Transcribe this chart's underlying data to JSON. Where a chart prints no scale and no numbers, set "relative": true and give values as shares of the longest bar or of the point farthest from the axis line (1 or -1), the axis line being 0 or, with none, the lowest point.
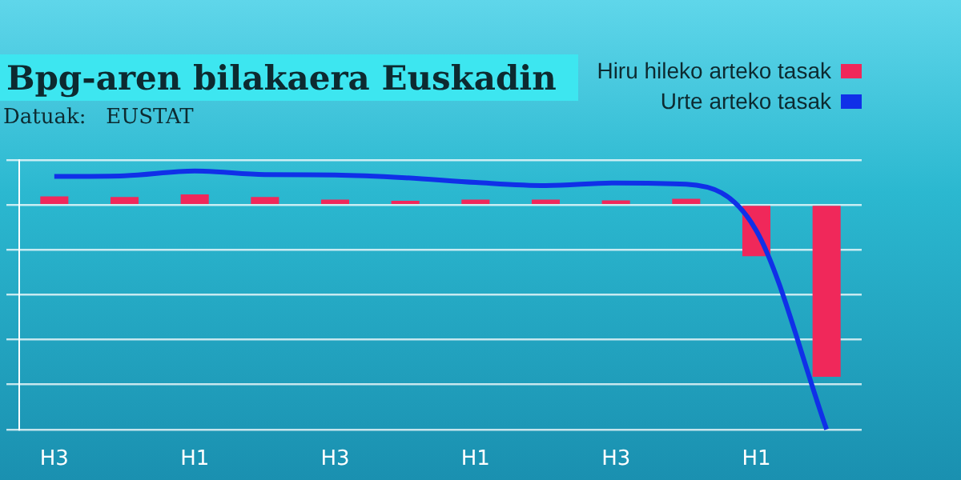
{
  "chart_data": {
    "type": "bar",
    "title": "Bpg-aren bilakaera Euskadin",
    "annotations": [
      "Datuak:   EUSTAT"
    ],
    "categories": [
      "H3",
      null,
      "H1",
      null,
      "H3",
      null,
      "H1",
      null,
      "H3",
      null,
      "H1",
      null
    ],
    "relative": true,
    "grid": "y",
    "legend": "top right",
    "series": [
      {
        "name": "Hiru hileko arteko tasak",
        "color": "#f0285a",
        "values": [
          0.038,
          0.035,
          0.047,
          0.035,
          0.024,
          0.018,
          0.024,
          0.024,
          0.02,
          0.027,
          -0.228,
          -0.766
        ]
      },
      {
        "name": "Urte arteko tasak",
        "type": "line",
        "color": "#1030e8",
        "values": [
          0.127,
          0.13,
          0.151,
          0.135,
          0.133,
          0.121,
          0.1,
          0.086,
          0.098,
          0.092,
          -0.115,
          -1
        ]
      }
    ]
  }
}
